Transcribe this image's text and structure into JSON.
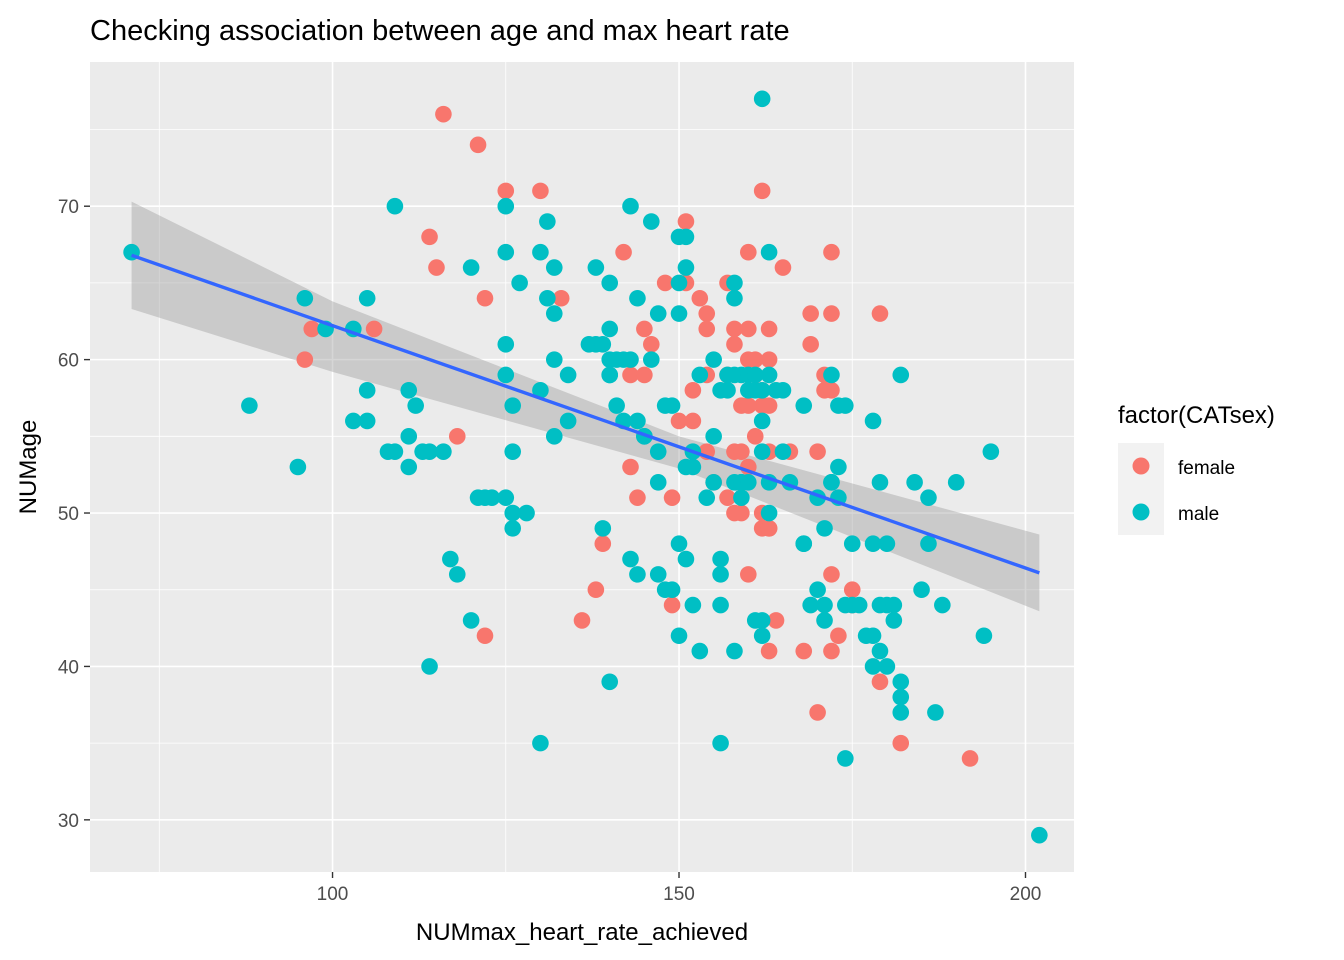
{
  "chart_data": {
    "type": "scatter",
    "title": "Checking association between age and max heart rate",
    "xlabel": "NUMmax_heart_rate_achieved",
    "ylabel": "NUMage",
    "xlim": [
      65,
      207
    ],
    "ylim": [
      26.6,
      79.4
    ],
    "x_ticks": [
      100,
      150,
      200
    ],
    "y_ticks": [
      30,
      40,
      50,
      60,
      70
    ],
    "x_tick_labels": [
      "100",
      "150",
      "200"
    ],
    "y_tick_labels": [
      "30",
      "40",
      "50",
      "60",
      "70"
    ],
    "grid": true,
    "legend": {
      "title": "factor(CATsex)",
      "position": "right",
      "entries": [
        "female",
        "male"
      ]
    },
    "colors": {
      "female": "#F8766D",
      "male": "#00BFC4",
      "trend": "#3366FF",
      "ribbon": "#999999",
      "panel": "#EBEBEB",
      "grid": "#FFFFFF"
    },
    "trend": {
      "method": "linear fit with confidence band",
      "x": [
        71,
        202
      ],
      "y": [
        66.8,
        46.1
      ],
      "band_x": [
        71,
        100,
        150,
        202
      ],
      "band_lower": [
        63.3,
        59.2,
        52.9,
        43.6
      ],
      "band_upper": [
        70.3,
        63.8,
        55.0,
        48.6
      ]
    },
    "series": [
      {
        "name": "female",
        "x": [
          116,
          121,
          125,
          130,
          122,
          133,
          114,
          115,
          106,
          97,
          96,
          118,
          122,
          142,
          138,
          139,
          136,
          143,
          143,
          144,
          145,
          146,
          148,
          149,
          149,
          151,
          151,
          152,
          152,
          153,
          154,
          154,
          154,
          155,
          157,
          157,
          158,
          158,
          158,
          159,
          159,
          159,
          160,
          160,
          160,
          160,
          160,
          161,
          161,
          162,
          162,
          162,
          162,
          162,
          163,
          163,
          163,
          163,
          163,
          163,
          164,
          165,
          166,
          168,
          169,
          169,
          170,
          170,
          171,
          171,
          172,
          172,
          172,
          172,
          172,
          173,
          175,
          175,
          179,
          179,
          182,
          192,
          145,
          157,
          161,
          163,
          150,
          154,
          158,
          160
        ],
        "y": [
          76,
          74,
          71,
          71,
          64,
          64,
          68,
          66,
          62,
          62,
          60,
          55,
          42,
          67,
          45,
          48,
          43,
          59,
          53,
          51,
          62,
          61,
          65,
          51,
          44,
          69,
          65,
          58,
          56,
          64,
          63,
          62,
          54,
          52,
          51,
          65,
          62,
          61,
          54,
          57,
          54,
          50,
          67,
          62,
          60,
          46,
          53,
          60,
          59,
          71,
          58,
          50,
          49,
          57,
          62,
          60,
          57,
          54,
          49,
          41,
          43,
          66,
          54,
          41,
          63,
          61,
          54,
          37,
          59,
          58,
          67,
          63,
          58,
          46,
          41,
          42,
          45,
          44,
          63,
          39,
          35,
          34,
          59,
          59,
          55,
          49,
          56,
          59,
          50,
          57
        ]
      },
      {
        "name": "male",
        "x": [
          71,
          96,
          105,
          103,
          99,
          88,
          95,
          105,
          103,
          105,
          108,
          109,
          113,
          109,
          111,
          112,
          111,
          111,
          114,
          116,
          117,
          118,
          120,
          120,
          121,
          114,
          122,
          123,
          125,
          125,
          125,
          125,
          126,
          126,
          126,
          126,
          128,
          127,
          125,
          130,
          130,
          131,
          131,
          132,
          132,
          132,
          132,
          134,
          134,
          137,
          138,
          138,
          139,
          139,
          140,
          140,
          140,
          140,
          140,
          141,
          141,
          142,
          142,
          143,
          143,
          143,
          144,
          144,
          144,
          145,
          145,
          146,
          146,
          147,
          147,
          147,
          147,
          148,
          148,
          149,
          149,
          150,
          150,
          150,
          150,
          150,
          151,
          151,
          151,
          151,
          152,
          152,
          152,
          153,
          153,
          154,
          155,
          155,
          155,
          156,
          156,
          156,
          156,
          157,
          157,
          158,
          158,
          158,
          158,
          158,
          159,
          159,
          159,
          159,
          160,
          160,
          160,
          161,
          161,
          161,
          162,
          162,
          162,
          162,
          162,
          163,
          163,
          163,
          163,
          164,
          165,
          165,
          166,
          168,
          168,
          168,
          169,
          170,
          170,
          171,
          171,
          171,
          172,
          172,
          172,
          173,
          173,
          173,
          174,
          174,
          174,
          175,
          175,
          176,
          177,
          178,
          178,
          178,
          178,
          179,
          179,
          179,
          180,
          180,
          180,
          181,
          181,
          182,
          182,
          182,
          182,
          184,
          185,
          186,
          186,
          187,
          188,
          190,
          194,
          195,
          202,
          162,
          130,
          140,
          156
        ],
        "y": [
          67,
          64,
          64,
          62,
          62,
          57,
          53,
          58,
          56,
          56,
          54,
          54,
          54,
          70,
          58,
          57,
          55,
          53,
          54,
          54,
          47,
          46,
          43,
          66,
          51,
          40,
          51,
          51,
          70,
          67,
          61,
          59,
          57,
          54,
          50,
          49,
          50,
          65,
          51,
          67,
          58,
          69,
          64,
          66,
          63,
          60,
          55,
          59,
          56,
          61,
          61,
          66,
          49,
          61,
          65,
          62,
          60,
          59,
          59,
          60,
          57,
          60,
          56,
          70,
          60,
          47,
          64,
          56,
          46,
          55,
          55,
          69,
          60,
          63,
          54,
          52,
          46,
          45,
          57,
          57,
          45,
          68,
          65,
          63,
          48,
          42,
          68,
          66,
          53,
          47,
          54,
          53,
          44,
          59,
          41,
          51,
          60,
          55,
          52,
          58,
          47,
          46,
          35,
          59,
          58,
          65,
          64,
          59,
          52,
          41,
          59,
          52,
          51,
          52,
          59,
          58,
          52,
          43,
          59,
          58,
          58,
          56,
          54,
          43,
          42,
          59,
          52,
          50,
          67,
          58,
          54,
          58,
          52,
          57,
          48,
          48,
          44,
          51,
          45,
          44,
          49,
          43,
          52,
          52,
          59,
          51,
          53,
          57,
          44,
          34,
          57,
          48,
          44,
          44,
          42,
          56,
          48,
          42,
          40,
          52,
          44,
          41,
          48,
          44,
          40,
          44,
          43,
          39,
          38,
          37,
          59,
          52,
          45,
          51,
          48,
          37,
          44,
          52,
          42,
          54,
          29,
          77,
          35,
          39,
          44
        ]
      }
    ]
  }
}
